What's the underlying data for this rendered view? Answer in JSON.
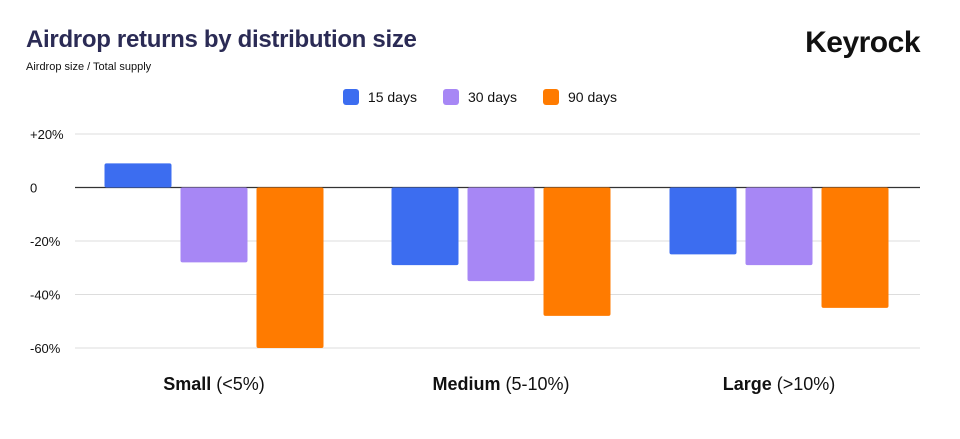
{
  "header": {
    "title": "Airdrop returns by distribution size",
    "subtitle": "Airdrop size / Total supply",
    "brand": "Keyrock"
  },
  "colors": {
    "title": "#2b2b55",
    "gridline": "#dddddd",
    "zero_line": "#333333"
  },
  "chart_data": {
    "type": "bar",
    "title": "Airdrop returns by distribution size",
    "subtitle": "Airdrop size / Total supply",
    "categories": [
      {
        "name": "Small",
        "range": "(<5%)"
      },
      {
        "name": "Medium",
        "range": "(5-10%)"
      },
      {
        "name": "Large",
        "range": "(>10%)"
      }
    ],
    "series": [
      {
        "name": "15 days",
        "color": "#3c6df0",
        "values": [
          9,
          -29,
          -25
        ]
      },
      {
        "name": "30 days",
        "color": "#a787f5",
        "values": [
          -28,
          -35,
          -29
        ]
      },
      {
        "name": "90 days",
        "color": "#ff7b00",
        "values": [
          -60,
          -48,
          -45
        ]
      }
    ],
    "ylim": [
      -60,
      20
    ],
    "yticks": [
      {
        "value": 20,
        "label": "+20%"
      },
      {
        "value": 0,
        "label": "0"
      },
      {
        "value": -20,
        "label": "-20%"
      },
      {
        "value": -40,
        "label": "-40%"
      },
      {
        "value": -60,
        "label": "-60%"
      }
    ],
    "grid": true,
    "legend_position": "top-center",
    "xlabel": "",
    "ylabel": ""
  }
}
